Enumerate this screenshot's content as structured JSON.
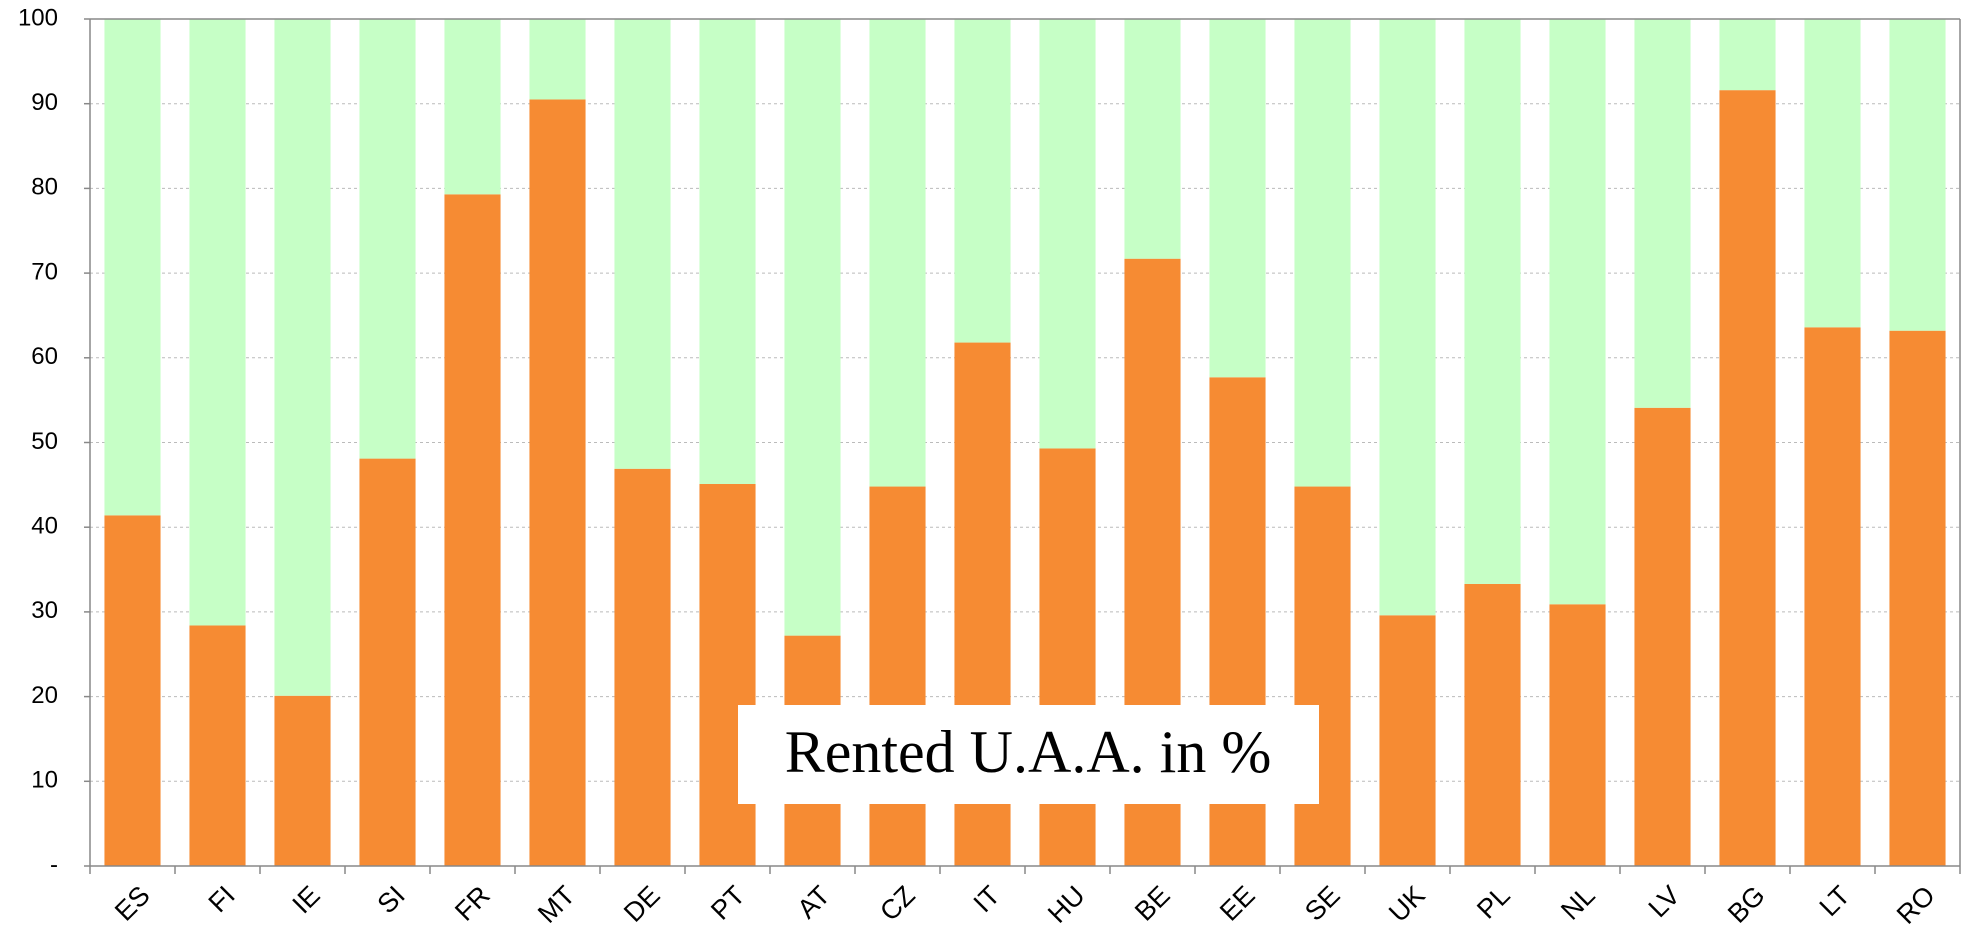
{
  "chart_data": {
    "type": "stacked_bar",
    "categories": [
      "ES",
      "FI",
      "IE",
      "SI",
      "FR",
      "MT",
      "DE",
      "PT",
      "AT",
      "CZ",
      "IT",
      "HU",
      "BE",
      "EE",
      "SE",
      "UK",
      "PL",
      "NL",
      "LV",
      "BG",
      "LT",
      "RO"
    ],
    "series": [
      {
        "color": "#f68b33",
        "values": [
          41.4,
          28.4,
          20.1,
          48.1,
          79.3,
          90.5,
          46.9,
          45.1,
          27.2,
          44.8,
          61.8,
          49.3,
          71.7,
          57.7,
          44.8,
          29.6,
          33.3,
          30.9,
          54.1,
          91.6,
          63.6,
          63.2
        ]
      },
      {
        "color": "#c6ffc6",
        "values": [
          58.6,
          71.6,
          79.9,
          51.9,
          20.7,
          9.5,
          53.1,
          54.9,
          72.8,
          55.2,
          38.2,
          50.7,
          28.3,
          42.3,
          55.2,
          70.4,
          66.7,
          69.1,
          45.9,
          8.4,
          36.4,
          36.8
        ]
      }
    ],
    "ylim": [
      0,
      100
    ],
    "yticks": [
      {
        "value": 0,
        "label": "-"
      },
      10,
      20,
      30,
      40,
      50,
      60,
      70,
      80,
      90,
      100
    ],
    "grid": true,
    "annotation": "Rented U.A.A. in %"
  }
}
